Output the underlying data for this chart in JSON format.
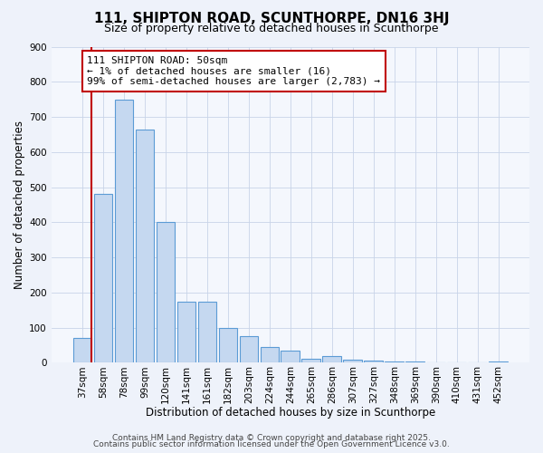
{
  "title": "111, SHIPTON ROAD, SCUNTHORPE, DN16 3HJ",
  "subtitle": "Size of property relative to detached houses in Scunthorpe",
  "xlabel": "Distribution of detached houses by size in Scunthorpe",
  "ylabel": "Number of detached properties",
  "bar_labels": [
    "37sqm",
    "58sqm",
    "78sqm",
    "99sqm",
    "120sqm",
    "141sqm",
    "161sqm",
    "182sqm",
    "203sqm",
    "224sqm",
    "244sqm",
    "265sqm",
    "286sqm",
    "307sqm",
    "327sqm",
    "348sqm",
    "369sqm",
    "390sqm",
    "410sqm",
    "431sqm",
    "452sqm"
  ],
  "bar_values": [
    70,
    480,
    750,
    665,
    400,
    175,
    175,
    100,
    75,
    45,
    35,
    12,
    20,
    10,
    5,
    3,
    3,
    0,
    0,
    0,
    3
  ],
  "bar_color": "#c5d8f0",
  "bar_edge_color": "#5b9bd5",
  "highlight_color": "#c00000",
  "ylim": [
    0,
    900
  ],
  "yticks": [
    0,
    100,
    200,
    300,
    400,
    500,
    600,
    700,
    800,
    900
  ],
  "annotation_title": "111 SHIPTON ROAD: 50sqm",
  "annotation_line1": "← 1% of detached houses are smaller (16)",
  "annotation_line2": "99% of semi-detached houses are larger (2,783) →",
  "annotation_box_color": "#ffffff",
  "annotation_box_edge_color": "#c00000",
  "footer_line1": "Contains HM Land Registry data © Crown copyright and database right 2025.",
  "footer_line2": "Contains public sector information licensed under the Open Government Licence v3.0.",
  "bg_color": "#eef2fa",
  "plot_bg_color": "#f4f7fd",
  "grid_color": "#c8d4e8",
  "title_fontsize": 11,
  "subtitle_fontsize": 9,
  "axis_label_fontsize": 8.5,
  "tick_fontsize": 7.5,
  "footer_fontsize": 6.5
}
